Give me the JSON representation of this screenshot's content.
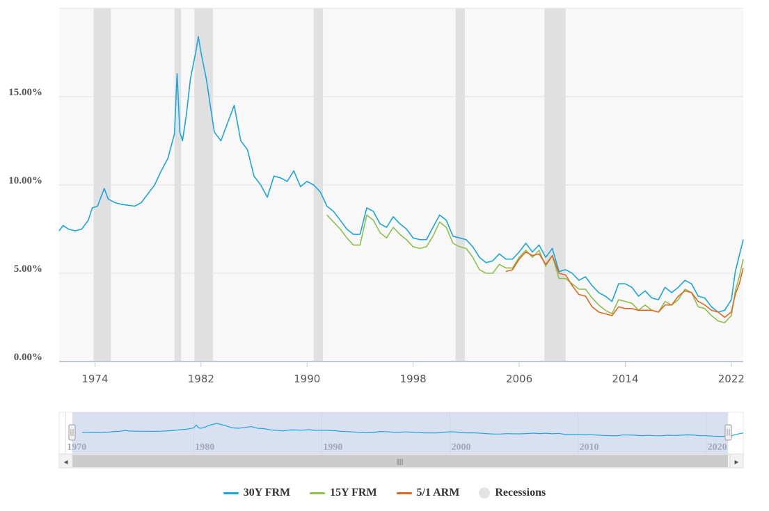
{
  "chart_data": {
    "type": "line",
    "y_ticks": [
      "0.00%",
      "5.00%",
      "10.00%",
      "15.00%"
    ],
    "y_tick_values": [
      0,
      5,
      10,
      15
    ],
    "ylim": [
      0,
      20
    ],
    "xlim": [
      1971.3,
      2022.9
    ],
    "x_ticks": [
      "1974",
      "1982",
      "1990",
      "1998",
      "2006",
      "2014",
      "2022"
    ],
    "x_tick_values": [
      1974,
      1982,
      1990,
      1998,
      2006,
      2014,
      2022
    ],
    "grid": true,
    "legend_position": "bottom",
    "colors": {
      "frm30": "#1aa6dd",
      "frm15": "#8cc04b",
      "arm51": "#e0661f",
      "recession": "#e0e0e0"
    },
    "recessions": [
      [
        1973.9,
        1975.2
      ],
      [
        1980.0,
        1980.5
      ],
      [
        1981.5,
        1982.9
      ],
      [
        1990.5,
        1991.2
      ],
      [
        2001.2,
        2001.9
      ],
      [
        2007.9,
        2009.5
      ]
    ],
    "series": [
      {
        "name": "30Y FRM",
        "key": "frm30",
        "x": [
          1971.3,
          1971.6,
          1972.0,
          1972.5,
          1973.0,
          1973.5,
          1973.8,
          1974.2,
          1974.7,
          1975.0,
          1975.5,
          1976.0,
          1977.0,
          1977.5,
          1978.0,
          1978.5,
          1979.0,
          1979.5,
          1980.0,
          1980.2,
          1980.4,
          1980.6,
          1980.9,
          1981.2,
          1981.6,
          1981.8,
          1982.0,
          1982.4,
          1982.7,
          1983.0,
          1983.5,
          1984.0,
          1984.5,
          1985.0,
          1985.5,
          1986.0,
          1986.5,
          1987.0,
          1987.5,
          1988.0,
          1988.5,
          1989.0,
          1989.5,
          1990.0,
          1990.5,
          1991.0,
          1991.5,
          1992.0,
          1992.5,
          1993.0,
          1993.5,
          1994.0,
          1994.5,
          1995.0,
          1995.5,
          1996.0,
          1996.5,
          1997.0,
          1997.5,
          1998.0,
          1998.5,
          1999.0,
          1999.5,
          2000.0,
          2000.5,
          2001.0,
          2001.5,
          2002.0,
          2002.5,
          2003.0,
          2003.5,
          2004.0,
          2004.5,
          2005.0,
          2005.5,
          2006.0,
          2006.5,
          2007.0,
          2007.5,
          2008.0,
          2008.5,
          2009.0,
          2009.5,
          2010.0,
          2010.5,
          2011.0,
          2011.5,
          2012.0,
          2012.5,
          2013.0,
          2013.5,
          2014.0,
          2014.5,
          2015.0,
          2015.5,
          2016.0,
          2016.5,
          2017.0,
          2017.5,
          2018.0,
          2018.5,
          2019.0,
          2019.5,
          2020.0,
          2020.5,
          2021.0,
          2021.5,
          2022.0,
          2022.3,
          2022.6,
          2022.9
        ],
        "values": [
          7.4,
          7.7,
          7.5,
          7.4,
          7.5,
          8.0,
          8.7,
          8.8,
          9.8,
          9.2,
          9.0,
          8.9,
          8.8,
          9.0,
          9.5,
          10.0,
          10.8,
          11.5,
          12.9,
          16.3,
          13.0,
          12.5,
          14.0,
          16.0,
          17.5,
          18.4,
          17.5,
          16.0,
          14.5,
          13.0,
          12.5,
          13.5,
          14.5,
          12.5,
          12.0,
          10.5,
          10.0,
          9.3,
          10.5,
          10.4,
          10.2,
          10.8,
          9.9,
          10.2,
          10.0,
          9.6,
          8.8,
          8.5,
          8.0,
          7.5,
          7.2,
          7.2,
          8.7,
          8.5,
          7.8,
          7.6,
          8.2,
          7.8,
          7.5,
          7.0,
          6.9,
          6.9,
          7.6,
          8.3,
          8.0,
          7.1,
          7.0,
          6.9,
          6.5,
          5.9,
          5.6,
          5.7,
          6.1,
          5.8,
          5.8,
          6.2,
          6.7,
          6.2,
          6.6,
          5.9,
          6.4,
          5.1,
          5.2,
          5.0,
          4.6,
          4.8,
          4.3,
          3.9,
          3.7,
          3.4,
          4.4,
          4.4,
          4.2,
          3.7,
          4.0,
          3.6,
          3.5,
          4.2,
          3.9,
          4.2,
          4.6,
          4.4,
          3.7,
          3.6,
          3.1,
          2.8,
          2.9,
          3.5,
          5.1,
          6.0,
          6.9
        ]
      },
      {
        "name": "15Y FRM",
        "key": "frm15",
        "x": [
          1991.5,
          1992.0,
          1992.5,
          1993.0,
          1993.5,
          1994.0,
          1994.5,
          1995.0,
          1995.5,
          1996.0,
          1996.5,
          1997.0,
          1997.5,
          1998.0,
          1998.5,
          1999.0,
          1999.5,
          2000.0,
          2000.5,
          2001.0,
          2001.5,
          2002.0,
          2002.5,
          2003.0,
          2003.5,
          2004.0,
          2004.5,
          2005.0,
          2005.5,
          2006.0,
          2006.5,
          2007.0,
          2007.5,
          2008.0,
          2008.5,
          2009.0,
          2009.5,
          2010.0,
          2010.5,
          2011.0,
          2011.5,
          2012.0,
          2012.5,
          2013.0,
          2013.5,
          2014.0,
          2014.5,
          2015.0,
          2015.5,
          2016.0,
          2016.5,
          2017.0,
          2017.5,
          2018.0,
          2018.5,
          2019.0,
          2019.5,
          2020.0,
          2020.5,
          2021.0,
          2021.5,
          2022.0,
          2022.3,
          2022.6,
          2022.9
        ],
        "values": [
          8.3,
          7.9,
          7.5,
          7.0,
          6.6,
          6.6,
          8.3,
          8.0,
          7.3,
          7.0,
          7.6,
          7.2,
          6.9,
          6.5,
          6.4,
          6.5,
          7.1,
          7.9,
          7.6,
          6.7,
          6.5,
          6.4,
          5.9,
          5.2,
          5.0,
          5.0,
          5.5,
          5.3,
          5.3,
          5.9,
          6.3,
          5.9,
          6.3,
          5.4,
          6.0,
          4.7,
          4.7,
          4.4,
          4.1,
          4.1,
          3.6,
          3.2,
          2.9,
          2.7,
          3.5,
          3.4,
          3.3,
          2.9,
          3.2,
          2.9,
          2.8,
          3.4,
          3.2,
          3.5,
          4.1,
          3.9,
          3.1,
          3.0,
          2.6,
          2.3,
          2.2,
          2.6,
          4.0,
          4.8,
          5.8
        ]
      },
      {
        "name": "5/1 ARM",
        "key": "arm51",
        "x": [
          2005.0,
          2005.5,
          2006.0,
          2006.5,
          2007.0,
          2007.5,
          2008.0,
          2008.5,
          2009.0,
          2009.5,
          2010.0,
          2010.5,
          2011.0,
          2011.5,
          2012.0,
          2012.5,
          2013.0,
          2013.5,
          2014.0,
          2014.5,
          2015.0,
          2015.5,
          2016.0,
          2016.5,
          2017.0,
          2017.5,
          2018.0,
          2018.5,
          2019.0,
          2019.5,
          2020.0,
          2020.5,
          2021.0,
          2021.5,
          2022.0,
          2022.3,
          2022.6,
          2022.9
        ],
        "values": [
          5.1,
          5.2,
          5.8,
          6.2,
          6.0,
          6.1,
          5.5,
          6.0,
          5.0,
          4.9,
          4.3,
          3.8,
          3.7,
          3.1,
          2.8,
          2.7,
          2.6,
          3.1,
          3.0,
          3.0,
          2.9,
          2.9,
          2.9,
          2.8,
          3.2,
          3.2,
          3.7,
          4.0,
          3.9,
          3.4,
          3.2,
          2.9,
          2.8,
          2.5,
          2.8,
          3.8,
          4.4,
          5.3
        ]
      }
    ]
  },
  "navigator": {
    "labels": [
      "1970",
      "1980",
      "1990",
      "2000",
      "2010",
      "2020"
    ],
    "label_years": [
      1970,
      1980,
      1990,
      2000,
      2010,
      2020
    ],
    "xlim": [
      1969.5,
      2022.9
    ],
    "handle_glyph": "|||",
    "left_arrow": "◂",
    "right_arrow": "▸"
  },
  "legend": {
    "items": [
      {
        "label": "30Y FRM",
        "color": "#1aa6dd"
      },
      {
        "label": "15Y FRM",
        "color": "#8cc04b"
      },
      {
        "label": "5/1 ARM",
        "color": "#e0661f"
      }
    ],
    "recessions_label": "Recessions",
    "recessions_color": "#e3e3e3"
  }
}
